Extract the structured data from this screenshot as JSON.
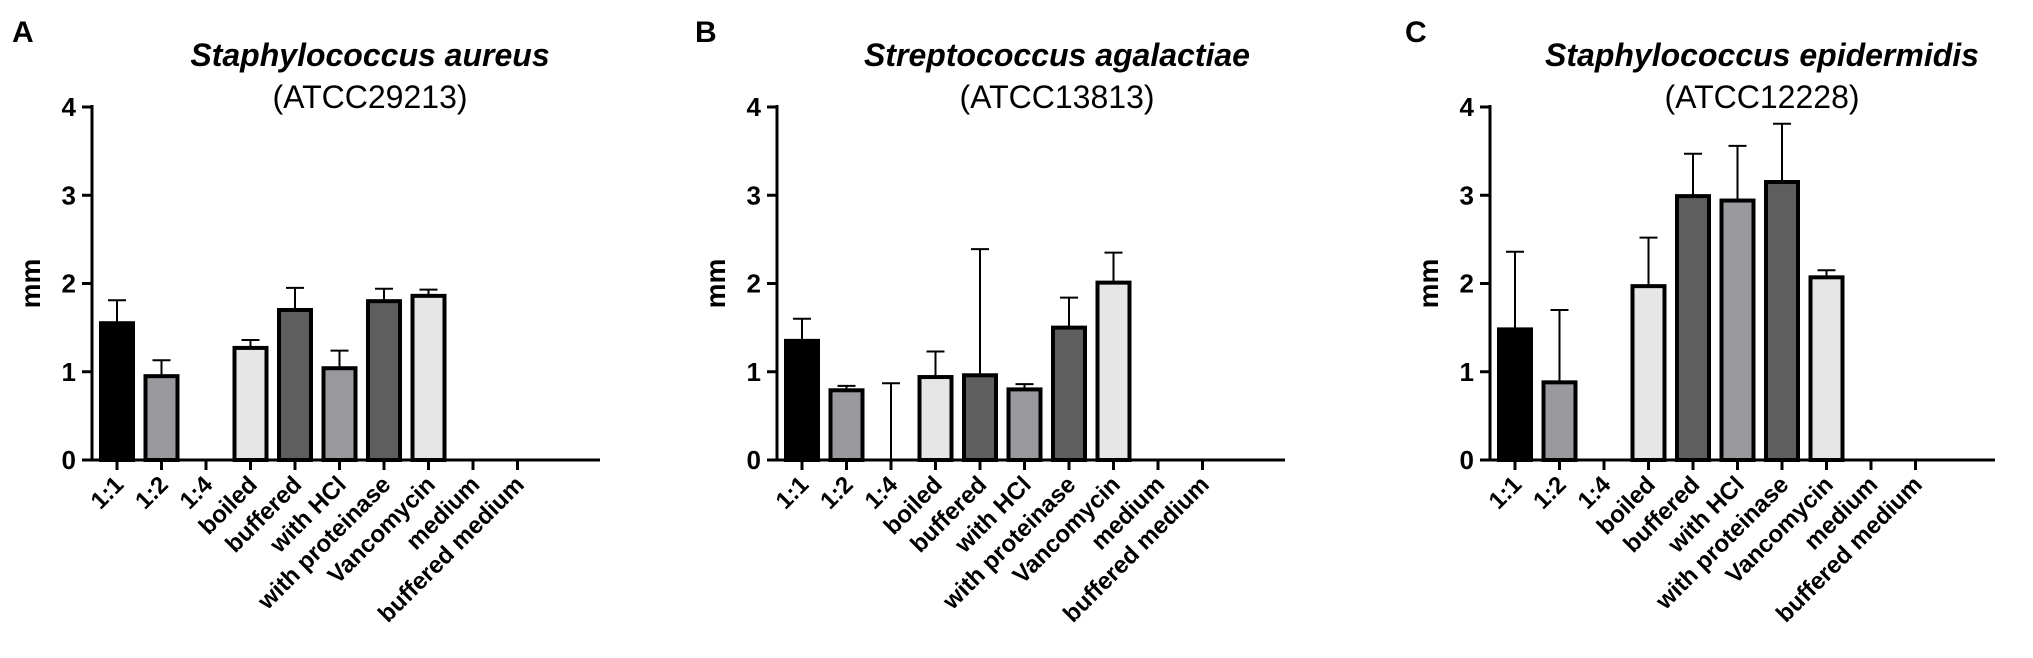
{
  "colors": {
    "black": "#000000",
    "medium_gray": "#9a9a9e",
    "light_gray": "#e6e6e6",
    "dark_gray": "#5e5e5e",
    "axis": "#000000"
  },
  "chart_data": [
    {
      "type": "bar",
      "panel_label": "A",
      "title": "Staphylococcus aureus",
      "subtitle": "(ATCC29213)",
      "ylabel": "mm",
      "xlabel": "",
      "ylim": [
        0,
        4
      ],
      "yticks": [
        "0",
        "1",
        "2",
        "3",
        "4"
      ],
      "categories": [
        "1:1",
        "1:2",
        "1:4",
        "boiled",
        "buffered",
        "with HCl",
        "with proteinase",
        "Vancomycin",
        "medium",
        "buffered medium"
      ],
      "values": [
        1.55,
        0.95,
        0,
        1.27,
        1.7,
        1.04,
        1.8,
        1.86,
        0,
        0
      ],
      "error_upper": [
        0.26,
        0.18,
        0,
        0.09,
        0.25,
        0.2,
        0.14,
        0.07,
        0,
        0
      ],
      "bar_colors": [
        "#000000",
        "#9a9a9e",
        "#9a9a9e",
        "#e6e6e6",
        "#5e5e5e",
        "#9a9a9e",
        "#5e5e5e",
        "#e6e6e6",
        "#e6e6e6",
        "#e6e6e6"
      ],
      "grid": false
    },
    {
      "type": "bar",
      "panel_label": "B",
      "title": "Streptococcus agalactiae",
      "subtitle": "(ATCC13813)",
      "ylabel": "mm",
      "xlabel": "",
      "ylim": [
        0,
        4
      ],
      "yticks": [
        "0",
        "1",
        "2",
        "3",
        "4"
      ],
      "categories": [
        "1:1",
        "1:2",
        "1:4",
        "boiled",
        "buffered",
        "with HCl",
        "with proteinase",
        "Vancomycin",
        "medium",
        "buffered medium"
      ],
      "values": [
        1.35,
        0.79,
        0,
        0.94,
        0.96,
        0.8,
        1.5,
        2.01,
        0,
        0
      ],
      "error_upper": [
        0.25,
        0.05,
        0.87,
        0.29,
        1.43,
        0.06,
        0.34,
        0.34,
        0,
        0
      ],
      "bar_colors": [
        "#000000",
        "#9a9a9e",
        "#9a9a9e",
        "#e6e6e6",
        "#5e5e5e",
        "#9a9a9e",
        "#5e5e5e",
        "#e6e6e6",
        "#e6e6e6",
        "#e6e6e6"
      ],
      "grid": false
    },
    {
      "type": "bar",
      "panel_label": "C",
      "title": "Staphylococcus epidermidis",
      "subtitle": "(ATCC12228)",
      "ylabel": "mm",
      "xlabel": "",
      "ylim": [
        0,
        4
      ],
      "yticks": [
        "0",
        "1",
        "2",
        "3",
        "4"
      ],
      "categories": [
        "1:1",
        "1:2",
        "1:4",
        "boiled",
        "buffered",
        "with HCl",
        "with proteinase",
        "Vancomycin",
        "medium",
        "buffered medium"
      ],
      "values": [
        1.48,
        0.88,
        0,
        1.97,
        2.99,
        2.94,
        3.15,
        2.07,
        0,
        0
      ],
      "error_upper": [
        0.88,
        0.82,
        0,
        0.55,
        0.48,
        0.62,
        0.66,
        0.08,
        0,
        0
      ],
      "bar_colors": [
        "#000000",
        "#9a9a9e",
        "#9a9a9e",
        "#e6e6e6",
        "#5e5e5e",
        "#9a9a9e",
        "#5e5e5e",
        "#e6e6e6",
        "#e6e6e6",
        "#e6e6e6"
      ],
      "grid": false
    }
  ]
}
